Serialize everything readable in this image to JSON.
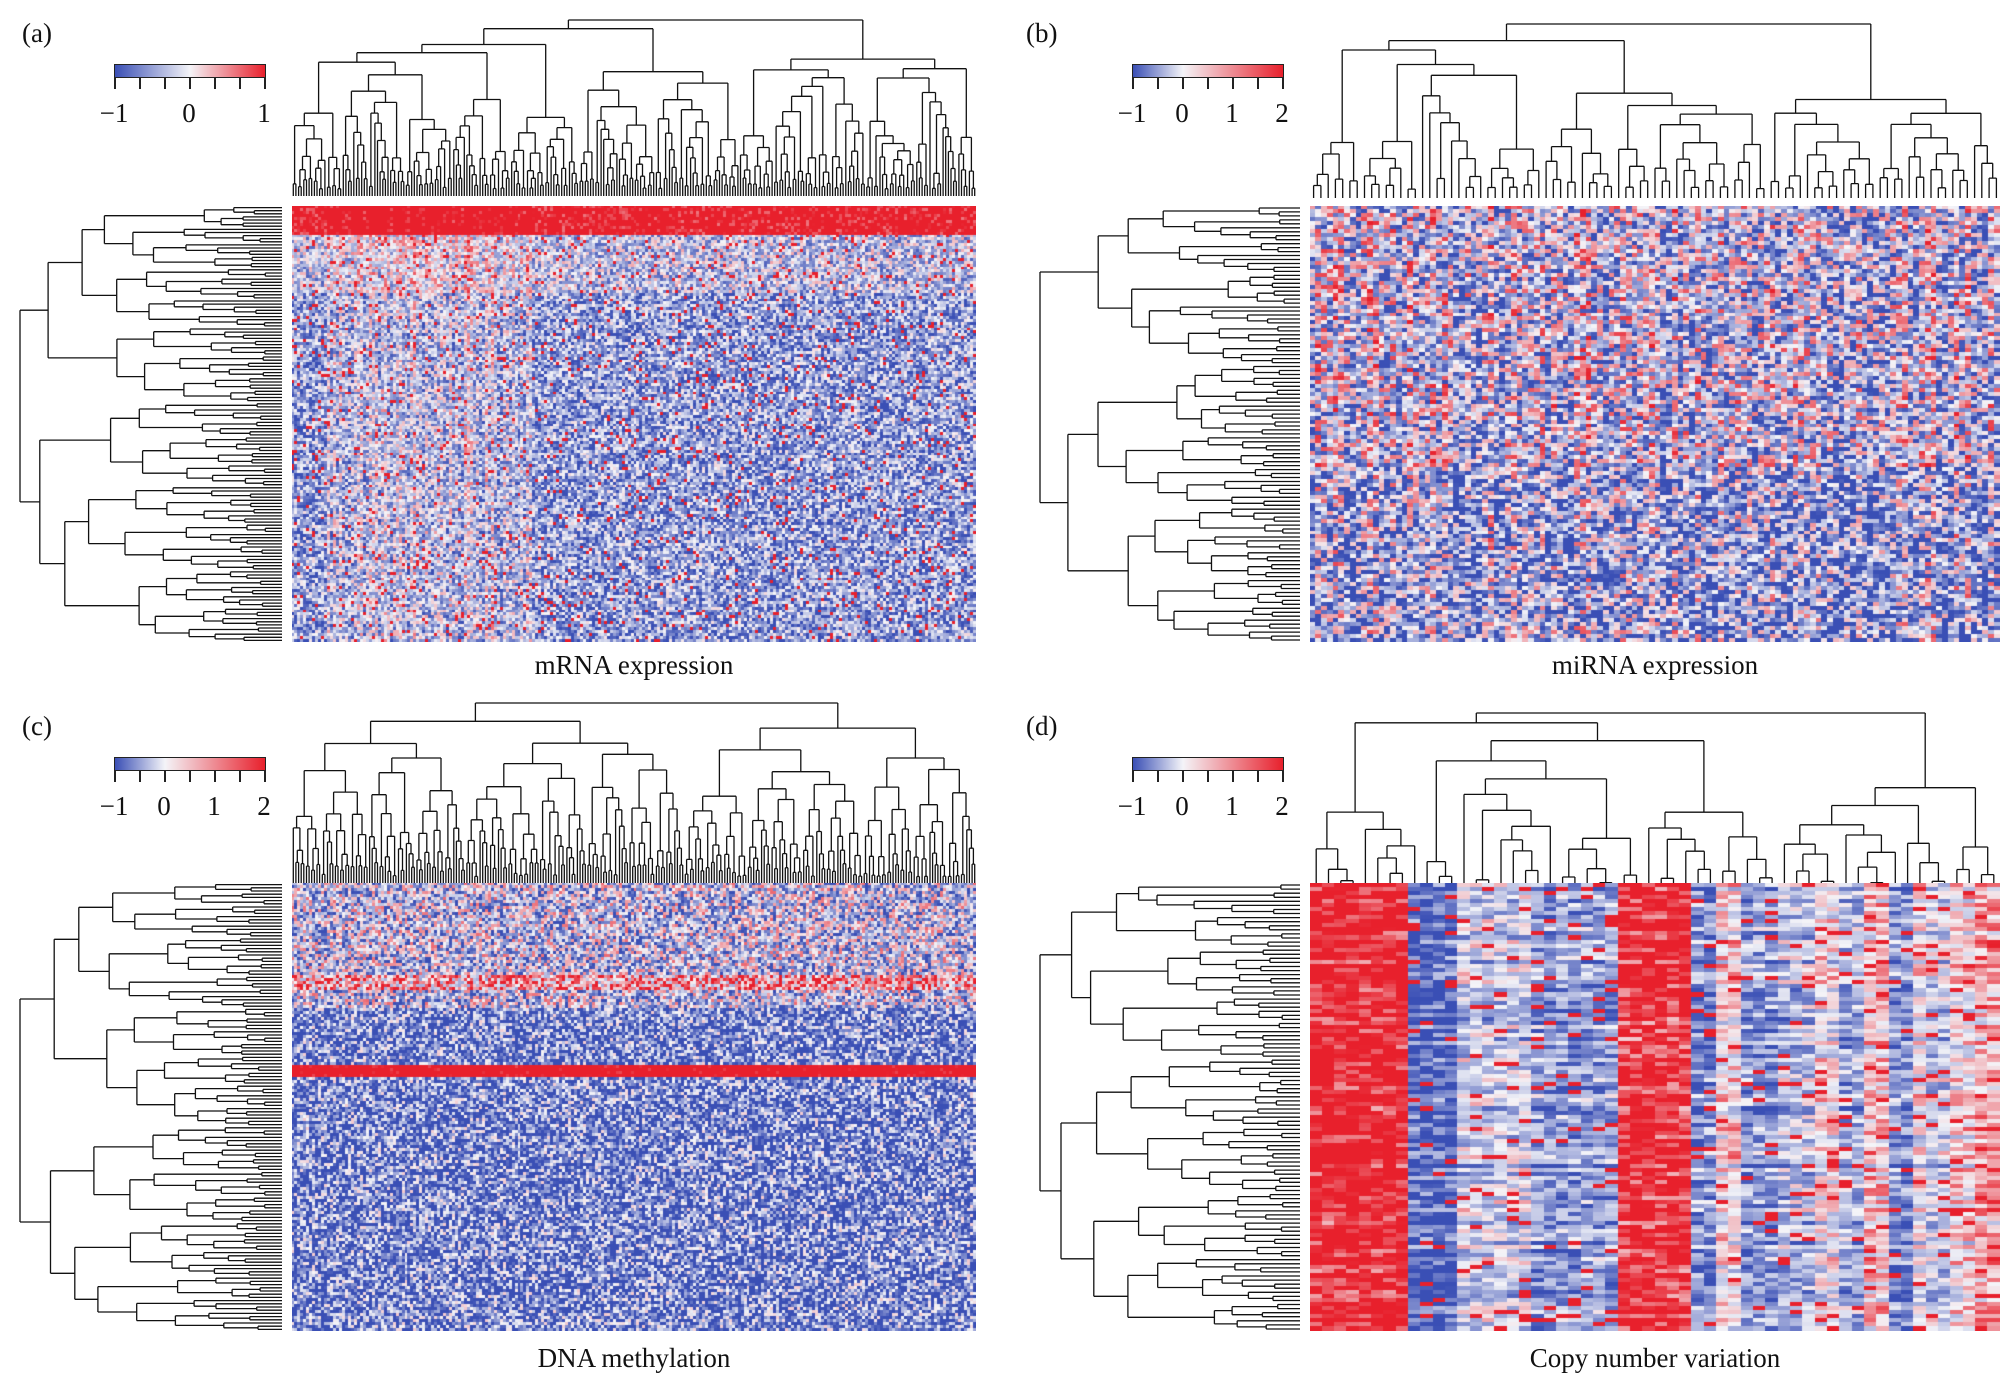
{
  "figure": {
    "panels": [
      {
        "id": "a",
        "label": "(a)",
        "caption": "mRNA expression",
        "legend": {
          "ticks": [
            "−1",
            "0",
            "1"
          ],
          "min": -1,
          "max": 1
        }
      },
      {
        "id": "b",
        "label": "(b)",
        "caption": "miRNA expression",
        "legend": {
          "ticks": [
            "−1",
            "0",
            "1",
            "2"
          ],
          "min": -1,
          "max": 2
        }
      },
      {
        "id": "c",
        "label": "(c)",
        "caption": "DNA methylation",
        "legend": {
          "ticks": [
            "−1",
            "0",
            "1",
            "2"
          ],
          "min": -1,
          "max": 2
        }
      },
      {
        "id": "d",
        "label": "(d)",
        "caption": "Copy number variation",
        "legend": {
          "ticks": [
            "−1",
            "0",
            "1",
            "2"
          ],
          "min": -1,
          "max": 2
        }
      }
    ],
    "colors": {
      "low": "#3a4fb5",
      "mid": "#f4f4f8",
      "high": "#e8202c"
    }
  },
  "chart_data": [
    {
      "type": "heatmap",
      "panel": "a",
      "title": "mRNA expression",
      "colorscale_range": [
        -1,
        1
      ],
      "dendrogram_rows": true,
      "dendrogram_columns": true
    },
    {
      "type": "heatmap",
      "panel": "b",
      "title": "miRNA expression",
      "colorscale_range": [
        -1,
        2
      ],
      "dendrogram_rows": true,
      "dendrogram_columns": true
    },
    {
      "type": "heatmap",
      "panel": "c",
      "title": "DNA methylation",
      "colorscale_range": [
        -1,
        2
      ],
      "dendrogram_rows": true,
      "dendrogram_columns": true
    },
    {
      "type": "heatmap",
      "panel": "d",
      "title": "Copy number variation",
      "colorscale_range": [
        -1,
        2
      ],
      "dendrogram_rows": true,
      "dendrogram_columns": true
    }
  ]
}
